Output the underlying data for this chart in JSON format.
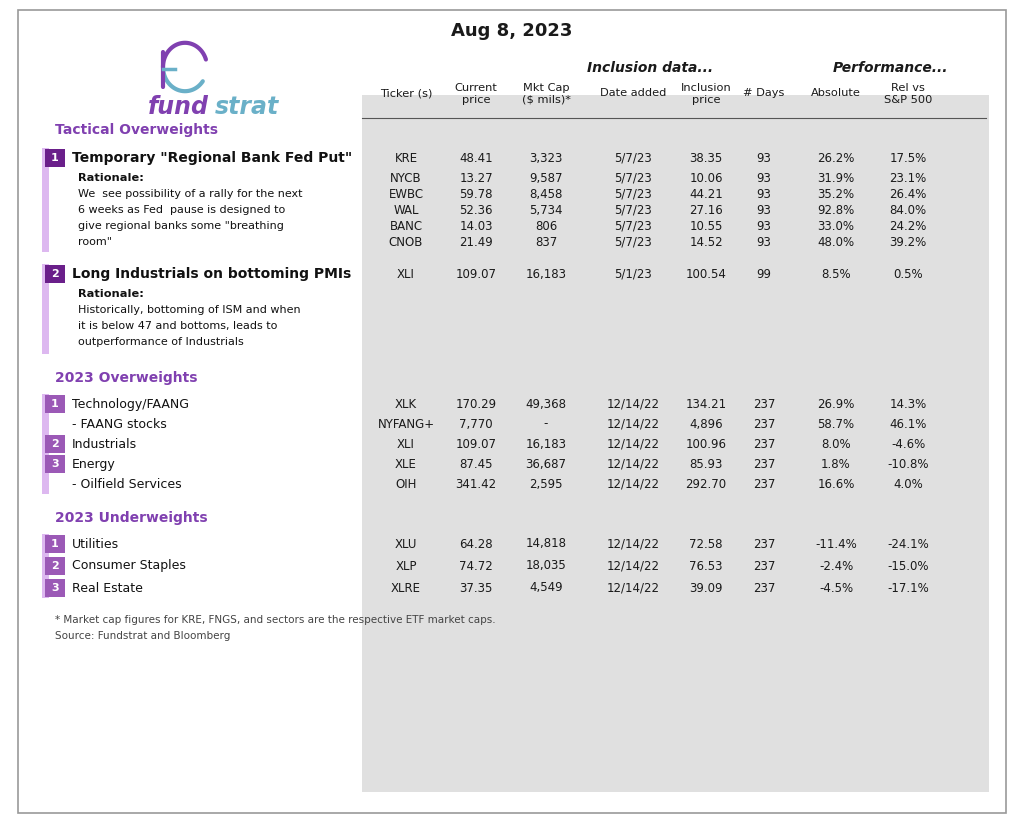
{
  "title": "Aug 8, 2023",
  "bg_color": "#ffffff",
  "table_bg_color": "#e0e0e0",
  "purple_dark": "#6a1f8a",
  "purple_medium": "#9b59b6",
  "purple_light": "#ddb8f0",
  "purple_section": "#8040b0",
  "teal_color": "#6ab0c8",
  "group_headers": [
    "Inclusion data...",
    "Performance..."
  ],
  "sections": [
    {
      "type": "tactical_overweights",
      "section_title": "Tactical Overweights",
      "items": [
        {
          "num": "1",
          "title": "Temporary \"Regional Bank Fed Put\"",
          "rationale_lines": [
            "Rationale:",
            "We  see possibility of a rally for the next",
            "6 weeks as Fed  pause is designed to",
            "give regional banks some \"breathing",
            "room\""
          ],
          "rows": [
            {
              "ticker": "KRE",
              "price": "48.41",
              "mktcap": "3,323",
              "date": "5/7/23",
              "inc_price": "38.35",
              "days": "93",
              "abs": "26.2%",
              "rel": "17.5%"
            },
            {
              "ticker": "NYCB",
              "price": "13.27",
              "mktcap": "9,587",
              "date": "5/7/23",
              "inc_price": "10.06",
              "days": "93",
              "abs": "31.9%",
              "rel": "23.1%"
            },
            {
              "ticker": "EWBC",
              "price": "59.78",
              "mktcap": "8,458",
              "date": "5/7/23",
              "inc_price": "44.21",
              "days": "93",
              "abs": "35.2%",
              "rel": "26.4%"
            },
            {
              "ticker": "WAL",
              "price": "52.36",
              "mktcap": "5,734",
              "date": "5/7/23",
              "inc_price": "27.16",
              "days": "93",
              "abs": "92.8%",
              "rel": "84.0%"
            },
            {
              "ticker": "BANC",
              "price": "14.03",
              "mktcap": "806",
              "date": "5/7/23",
              "inc_price": "10.55",
              "days": "93",
              "abs": "33.0%",
              "rel": "24.2%"
            },
            {
              "ticker": "CNOB",
              "price": "21.49",
              "mktcap": "837",
              "date": "5/7/23",
              "inc_price": "14.52",
              "days": "93",
              "abs": "48.0%",
              "rel": "39.2%"
            }
          ]
        },
        {
          "num": "2",
          "title": "Long Industrials on bottoming PMIs",
          "rationale_lines": [
            "Rationale:",
            "Historically, bottoming of ISM and when",
            "it is below 47 and bottoms, leads to",
            "outperformance of Industrials"
          ],
          "rows": [
            {
              "ticker": "XLI",
              "price": "109.07",
              "mktcap": "16,183",
              "date": "5/1/23",
              "inc_price": "100.54",
              "days": "99",
              "abs": "8.5%",
              "rel": "0.5%"
            }
          ]
        }
      ]
    },
    {
      "type": "overweights_2023",
      "section_title": "2023 Overweights",
      "items": [
        {
          "num": "1",
          "title": "Technology/FAANG",
          "sub": false,
          "rows": [
            {
              "ticker": "XLK",
              "price": "170.29",
              "mktcap": "49,368",
              "date": "12/14/22",
              "inc_price": "134.21",
              "days": "237",
              "abs": "26.9%",
              "rel": "14.3%"
            }
          ]
        },
        {
          "num": "",
          "title": "- FAANG stocks",
          "sub": true,
          "rows": [
            {
              "ticker": "NYFANG+",
              "price": "7,770",
              "mktcap": "-",
              "date": "12/14/22",
              "inc_price": "4,896",
              "days": "237",
              "abs": "58.7%",
              "rel": "46.1%"
            }
          ]
        },
        {
          "num": "2",
          "title": "Industrials",
          "sub": false,
          "rows": [
            {
              "ticker": "XLI",
              "price": "109.07",
              "mktcap": "16,183",
              "date": "12/14/22",
              "inc_price": "100.96",
              "days": "237",
              "abs": "8.0%",
              "rel": "-4.6%"
            }
          ]
        },
        {
          "num": "3",
          "title": "Energy",
          "sub": false,
          "rows": [
            {
              "ticker": "XLE",
              "price": "87.45",
              "mktcap": "36,687",
              "date": "12/14/22",
              "inc_price": "85.93",
              "days": "237",
              "abs": "1.8%",
              "rel": "-10.8%"
            }
          ]
        },
        {
          "num": "",
          "title": "- Oilfield Services",
          "sub": true,
          "rows": [
            {
              "ticker": "OIH",
              "price": "341.42",
              "mktcap": "2,595",
              "date": "12/14/22",
              "inc_price": "292.70",
              "days": "237",
              "abs": "16.6%",
              "rel": "4.0%"
            }
          ]
        }
      ]
    },
    {
      "type": "underweights_2023",
      "section_title": "2023 Underweights",
      "items": [
        {
          "num": "1",
          "title": "Utilities",
          "sub": false,
          "rows": [
            {
              "ticker": "XLU",
              "price": "64.28",
              "mktcap": "14,818",
              "date": "12/14/22",
              "inc_price": "72.58",
              "days": "237",
              "abs": "-11.4%",
              "rel": "-24.1%"
            }
          ]
        },
        {
          "num": "2",
          "title": "Consumer Staples",
          "sub": false,
          "rows": [
            {
              "ticker": "XLP",
              "price": "74.72",
              "mktcap": "18,035",
              "date": "12/14/22",
              "inc_price": "76.53",
              "days": "237",
              "abs": "-2.4%",
              "rel": "-15.0%"
            }
          ]
        },
        {
          "num": "3",
          "title": "Real Estate",
          "sub": false,
          "rows": [
            {
              "ticker": "XLRE",
              "price": "37.35",
              "mktcap": "4,549",
              "date": "12/14/22",
              "inc_price": "39.09",
              "days": "237",
              "abs": "-4.5%",
              "rel": "-17.1%"
            }
          ]
        }
      ]
    }
  ],
  "footnotes": [
    "* Market cap figures for KRE, FNGS, and sectors are the respective ETF market caps.",
    "Source: Fundstrat and Bloomberg"
  ]
}
